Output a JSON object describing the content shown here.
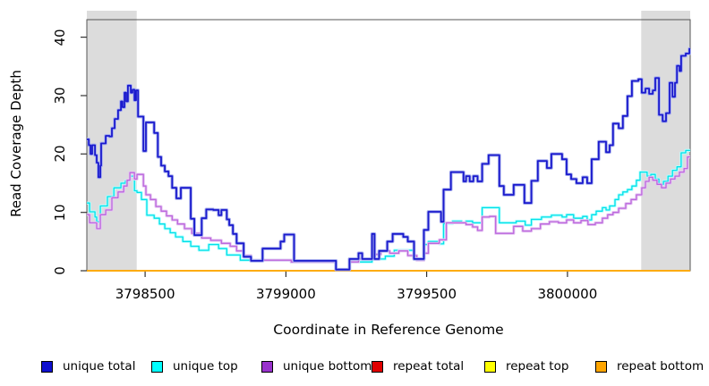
{
  "figure": {
    "background": "#ffffff"
  },
  "axes": {
    "x_title": "Coordinate in Reference Genome",
    "y_title": "Read Coverage Depth"
  },
  "chart_data": {
    "type": "line",
    "subtype": "step-after",
    "title": "",
    "xlabel": "Coordinate in Reference Genome",
    "ylabel": "Read Coverage Depth",
    "xlim": [
      3798293,
      3800436
    ],
    "ylim": [
      0,
      43
    ],
    "x_ticks": [
      3798500,
      3799000,
      3799500,
      3800000
    ],
    "y_ticks": [
      0,
      10,
      20,
      30,
      40
    ],
    "grid": false,
    "legend_position": "bottom",
    "box_color": "#555555",
    "tick_color": "#333333",
    "shaded_regions": [
      {
        "x0": 3798293,
        "x1": 3798470,
        "color": "#dcdcdc"
      },
      {
        "x0": 3800262,
        "x1": 3800436,
        "color": "#dcdcdc"
      }
    ],
    "series": [
      {
        "name": "unique total",
        "color": "#1a1acd",
        "halo": "#a9b0ee",
        "width": 1.8,
        "points": [
          [
            3798293,
            22.5
          ],
          [
            3798300,
            21.5
          ],
          [
            3798306,
            20
          ],
          [
            3798312,
            21.5
          ],
          [
            3798322,
            19.8
          ],
          [
            3798328,
            18.5
          ],
          [
            3798334,
            16
          ],
          [
            3798341,
            18
          ],
          [
            3798344,
            21.8
          ],
          [
            3798360,
            23.1
          ],
          [
            3798373,
            23
          ],
          [
            3798382,
            24.4
          ],
          [
            3798392,
            26
          ],
          [
            3798404,
            27.5
          ],
          [
            3798414,
            29
          ],
          [
            3798420,
            28
          ],
          [
            3798427,
            30.5
          ],
          [
            3798433,
            29
          ],
          [
            3798439,
            31.7
          ],
          [
            3798449,
            30.5
          ],
          [
            3798455,
            31
          ],
          [
            3798462,
            29.2
          ],
          [
            3798468,
            30.9
          ],
          [
            3798475,
            26.4
          ],
          [
            3798494,
            20.5
          ],
          [
            3798503,
            25.4
          ],
          [
            3798532,
            23.6
          ],
          [
            3798545,
            19.5
          ],
          [
            3798557,
            18
          ],
          [
            3798570,
            17
          ],
          [
            3798583,
            16.2
          ],
          [
            3798596,
            14.2
          ],
          [
            3798611,
            12.4
          ],
          [
            3798627,
            14.2
          ],
          [
            3798662,
            8.9
          ],
          [
            3798675,
            6.1
          ],
          [
            3798701,
            9
          ],
          [
            3798717,
            10.5
          ],
          [
            3798742,
            10.4
          ],
          [
            3798761,
            9.5
          ],
          [
            3798771,
            10.4
          ],
          [
            3798790,
            8.8
          ],
          [
            3798799,
            7.8
          ],
          [
            3798812,
            6.3
          ],
          [
            3798825,
            4.7
          ],
          [
            3798850,
            2.4
          ],
          [
            3798876,
            1.7
          ],
          [
            3798917,
            3.8
          ],
          [
            3798981,
            5
          ],
          [
            3798994,
            6.2
          ],
          [
            3799029,
            1.7
          ],
          [
            3799178,
            0.2
          ],
          [
            3799226,
            2
          ],
          [
            3799258,
            3
          ],
          [
            3799271,
            2
          ],
          [
            3799306,
            6.3
          ],
          [
            3799315,
            2
          ],
          [
            3799331,
            3.4
          ],
          [
            3799360,
            5
          ],
          [
            3799379,
            6.3
          ],
          [
            3799417,
            5.8
          ],
          [
            3799433,
            5
          ],
          [
            3799455,
            2
          ],
          [
            3799490,
            7
          ],
          [
            3799506,
            10.1
          ],
          [
            3799551,
            8.4
          ],
          [
            3799560,
            13.9
          ],
          [
            3799586,
            16.9
          ],
          [
            3799631,
            15.3
          ],
          [
            3799640,
            16.2
          ],
          [
            3799653,
            15.3
          ],
          [
            3799666,
            16.2
          ],
          [
            3799681,
            15.3
          ],
          [
            3799697,
            18.3
          ],
          [
            3799720,
            19.8
          ],
          [
            3799758,
            14.5
          ],
          [
            3799774,
            13
          ],
          [
            3799809,
            14.7
          ],
          [
            3799847,
            11.6
          ],
          [
            3799872,
            15.4
          ],
          [
            3799895,
            18.8
          ],
          [
            3799927,
            17.6
          ],
          [
            3799943,
            20
          ],
          [
            3799981,
            19.1
          ],
          [
            3799997,
            16.5
          ],
          [
            3800013,
            15.7
          ],
          [
            3800032,
            15
          ],
          [
            3800054,
            16
          ],
          [
            3800070,
            15
          ],
          [
            3800086,
            19.1
          ],
          [
            3800111,
            22.1
          ],
          [
            3800137,
            20.3
          ],
          [
            3800150,
            21.5
          ],
          [
            3800162,
            25.2
          ],
          [
            3800182,
            24.4
          ],
          [
            3800197,
            26.5
          ],
          [
            3800213,
            29.9
          ],
          [
            3800229,
            32.5
          ],
          [
            3800252,
            32.8
          ],
          [
            3800264,
            30.5
          ],
          [
            3800277,
            31.2
          ],
          [
            3800290,
            30.3
          ],
          [
            3800303,
            30.9
          ],
          [
            3800312,
            33
          ],
          [
            3800325,
            26.7
          ],
          [
            3800338,
            25.6
          ],
          [
            3800350,
            27
          ],
          [
            3800363,
            32.2
          ],
          [
            3800373,
            29.8
          ],
          [
            3800382,
            32.2
          ],
          [
            3800389,
            35.1
          ],
          [
            3800398,
            34.2
          ],
          [
            3800404,
            36.8
          ],
          [
            3800420,
            37.2
          ],
          [
            3800433,
            38
          ]
        ]
      },
      {
        "name": "unique top",
        "color": "#00e0e8",
        "halo": "#b3ffff",
        "width": 1.3,
        "points": [
          [
            3798293,
            11.6
          ],
          [
            3798303,
            10.1
          ],
          [
            3798322,
            9.2
          ],
          [
            3798328,
            8.4
          ],
          [
            3798341,
            11.1
          ],
          [
            3798366,
            12.7
          ],
          [
            3798389,
            14.2
          ],
          [
            3798414,
            15
          ],
          [
            3798430,
            15.4
          ],
          [
            3798446,
            16.2
          ],
          [
            3798462,
            13.7
          ],
          [
            3798471,
            13.4
          ],
          [
            3798487,
            12.2
          ],
          [
            3798506,
            9.5
          ],
          [
            3798532,
            9
          ],
          [
            3798551,
            8
          ],
          [
            3798570,
            7.2
          ],
          [
            3798589,
            6.5
          ],
          [
            3798608,
            5.8
          ],
          [
            3798634,
            5
          ],
          [
            3798662,
            4.2
          ],
          [
            3798691,
            3.5
          ],
          [
            3798726,
            4.5
          ],
          [
            3798761,
            3.8
          ],
          [
            3798790,
            2.7
          ],
          [
            3798838,
            1.8
          ],
          [
            3799019,
            1.5
          ],
          [
            3799178,
            0.2
          ],
          [
            3799226,
            1.5
          ],
          [
            3799306,
            2
          ],
          [
            3799353,
            2.5
          ],
          [
            3799385,
            3.5
          ],
          [
            3799455,
            2
          ],
          [
            3799490,
            4.5
          ],
          [
            3799506,
            5
          ],
          [
            3799545,
            4.6
          ],
          [
            3799560,
            8.1
          ],
          [
            3799592,
            8.5
          ],
          [
            3799624,
            8.2
          ],
          [
            3799640,
            8.5
          ],
          [
            3799663,
            8.2
          ],
          [
            3799697,
            10.8
          ],
          [
            3799758,
            8.2
          ],
          [
            3799818,
            8.5
          ],
          [
            3799850,
            7.8
          ],
          [
            3799872,
            8.8
          ],
          [
            3799908,
            9.2
          ],
          [
            3799943,
            9.5
          ],
          [
            3799981,
            9.2
          ],
          [
            3799997,
            9.6
          ],
          [
            3800022,
            9
          ],
          [
            3800054,
            9.3
          ],
          [
            3800070,
            8.7
          ],
          [
            3800086,
            9.6
          ],
          [
            3800102,
            10.2
          ],
          [
            3800124,
            10.8
          ],
          [
            3800137,
            10.4
          ],
          [
            3800150,
            11.1
          ],
          [
            3800169,
            12.2
          ],
          [
            3800182,
            13
          ],
          [
            3800197,
            13.5
          ],
          [
            3800213,
            13.9
          ],
          [
            3800229,
            14.5
          ],
          [
            3800245,
            15.5
          ],
          [
            3800258,
            16.9
          ],
          [
            3800283,
            16.2
          ],
          [
            3800296,
            16.5
          ],
          [
            3800312,
            15.7
          ],
          [
            3800325,
            14.8
          ],
          [
            3800341,
            15.3
          ],
          [
            3800357,
            16.2
          ],
          [
            3800373,
            17.2
          ],
          [
            3800389,
            17.8
          ],
          [
            3800404,
            20.2
          ],
          [
            3800420,
            20.6
          ]
        ]
      },
      {
        "name": "unique bottom",
        "color": "#bb66dd",
        "halo": "#e6c6f2",
        "width": 1.3,
        "points": [
          [
            3798293,
            9.6
          ],
          [
            3798303,
            8.2
          ],
          [
            3798328,
            7.2
          ],
          [
            3798341,
            9.6
          ],
          [
            3798360,
            10.4
          ],
          [
            3798382,
            12.5
          ],
          [
            3798404,
            13.5
          ],
          [
            3798424,
            14.5
          ],
          [
            3798436,
            15.5
          ],
          [
            3798446,
            16.8
          ],
          [
            3798462,
            15.7
          ],
          [
            3798471,
            16.5
          ],
          [
            3798494,
            14.5
          ],
          [
            3798503,
            13
          ],
          [
            3798519,
            12.2
          ],
          [
            3798538,
            11
          ],
          [
            3798557,
            10.2
          ],
          [
            3798576,
            9.4
          ],
          [
            3798596,
            8.7
          ],
          [
            3798615,
            8
          ],
          [
            3798640,
            7.2
          ],
          [
            3798666,
            6.4
          ],
          [
            3798701,
            5.6
          ],
          [
            3798733,
            5.2
          ],
          [
            3798771,
            4.7
          ],
          [
            3798802,
            4.2
          ],
          [
            3798825,
            3.4
          ],
          [
            3798850,
            2.6
          ],
          [
            3798876,
            1.8
          ],
          [
            3799019,
            1.5
          ],
          [
            3799178,
            0.2
          ],
          [
            3799226,
            1.5
          ],
          [
            3799258,
            2
          ],
          [
            3799306,
            2.8
          ],
          [
            3799337,
            3.4
          ],
          [
            3799369,
            3
          ],
          [
            3799401,
            3.4
          ],
          [
            3799433,
            2.6
          ],
          [
            3799465,
            1.8
          ],
          [
            3799490,
            3
          ],
          [
            3799506,
            4.7
          ],
          [
            3799545,
            5.3
          ],
          [
            3799570,
            8.2
          ],
          [
            3799608,
            8.2
          ],
          [
            3799640,
            7.9
          ],
          [
            3799663,
            7.5
          ],
          [
            3799681,
            6.9
          ],
          [
            3799697,
            9.2
          ],
          [
            3799723,
            9.3
          ],
          [
            3799745,
            6.4
          ],
          [
            3799783,
            6.4
          ],
          [
            3799809,
            7.6
          ],
          [
            3799841,
            6.8
          ],
          [
            3799872,
            7.2
          ],
          [
            3799904,
            8
          ],
          [
            3799936,
            8.4
          ],
          [
            3799968,
            8.2
          ],
          [
            3799997,
            8.7
          ],
          [
            3800022,
            8.2
          ],
          [
            3800048,
            8.6
          ],
          [
            3800073,
            7.9
          ],
          [
            3800099,
            8.2
          ],
          [
            3800124,
            9
          ],
          [
            3800143,
            9.6
          ],
          [
            3800162,
            10
          ],
          [
            3800182,
            10.7
          ],
          [
            3800207,
            11.5
          ],
          [
            3800226,
            12.2
          ],
          [
            3800245,
            13
          ],
          [
            3800264,
            14.2
          ],
          [
            3800277,
            15.3
          ],
          [
            3800290,
            16
          ],
          [
            3800303,
            15.5
          ],
          [
            3800318,
            14.8
          ],
          [
            3800334,
            14.2
          ],
          [
            3800350,
            15
          ],
          [
            3800366,
            15.7
          ],
          [
            3800382,
            16.2
          ],
          [
            3800398,
            16.9
          ],
          [
            3800414,
            17.5
          ],
          [
            3800426,
            19.5
          ]
        ]
      },
      {
        "name": "repeat total",
        "color": "#dd0000",
        "width": 1.4,
        "points": [
          [
            3798293,
            0
          ],
          [
            3800436,
            0
          ]
        ]
      },
      {
        "name": "repeat top",
        "color": "#ffff00",
        "width": 1.4,
        "points": [
          [
            3798293,
            0
          ],
          [
            3800436,
            0
          ]
        ]
      },
      {
        "name": "repeat bottom",
        "color": "#ffa500",
        "width": 1.6,
        "points": [
          [
            3798293,
            0
          ],
          [
            3800436,
            0
          ]
        ]
      }
    ]
  },
  "legend": {
    "items": [
      {
        "label": "unique total",
        "color": "#0f10cf"
      },
      {
        "label": "unique top",
        "color": "#00ffff"
      },
      {
        "label": "unique bottom",
        "color": "#9932cc"
      },
      {
        "label": "repeat total",
        "color": "#e00000"
      },
      {
        "label": "repeat top",
        "color": "#ffff00"
      },
      {
        "label": "repeat bottom",
        "color": "#ffa500"
      }
    ]
  }
}
